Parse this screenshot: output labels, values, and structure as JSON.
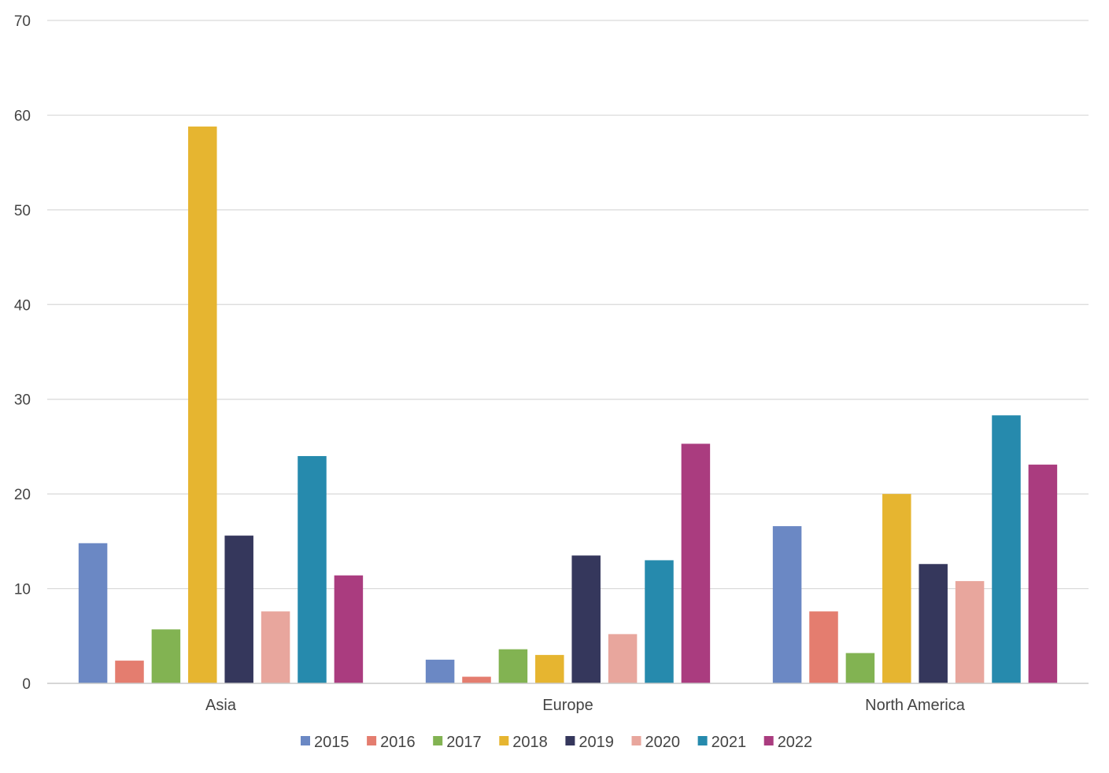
{
  "chart_data": {
    "type": "bar",
    "title": "",
    "xlabel": "",
    "ylabel": "",
    "categories": [
      "Asia",
      "Europe",
      "North America"
    ],
    "ylim": [
      0,
      70
    ],
    "yticks": [
      0,
      10,
      20,
      30,
      40,
      50,
      60,
      70
    ],
    "grid": true,
    "legend_position": "bottom",
    "series": [
      {
        "name": "2015",
        "color": "#6b88c4",
        "values": [
          14.8,
          2.5,
          16.6
        ]
      },
      {
        "name": "2016",
        "color": "#e47d6f",
        "values": [
          2.4,
          0.7,
          7.6
        ]
      },
      {
        "name": "2017",
        "color": "#82b352",
        "values": [
          5.7,
          3.6,
          3.2
        ]
      },
      {
        "name": "2018",
        "color": "#e6b530",
        "values": [
          58.8,
          3.0,
          20.0
        ]
      },
      {
        "name": "2019",
        "color": "#35375c",
        "values": [
          15.6,
          13.5,
          12.6
        ]
      },
      {
        "name": "2020",
        "color": "#e8a69d",
        "values": [
          7.6,
          5.2,
          10.8
        ]
      },
      {
        "name": "2021",
        "color": "#268aad",
        "values": [
          24.0,
          13.0,
          28.3
        ]
      },
      {
        "name": "2022",
        "color": "#aa3c7f",
        "values": [
          11.4,
          25.3,
          23.1
        ]
      }
    ]
  }
}
